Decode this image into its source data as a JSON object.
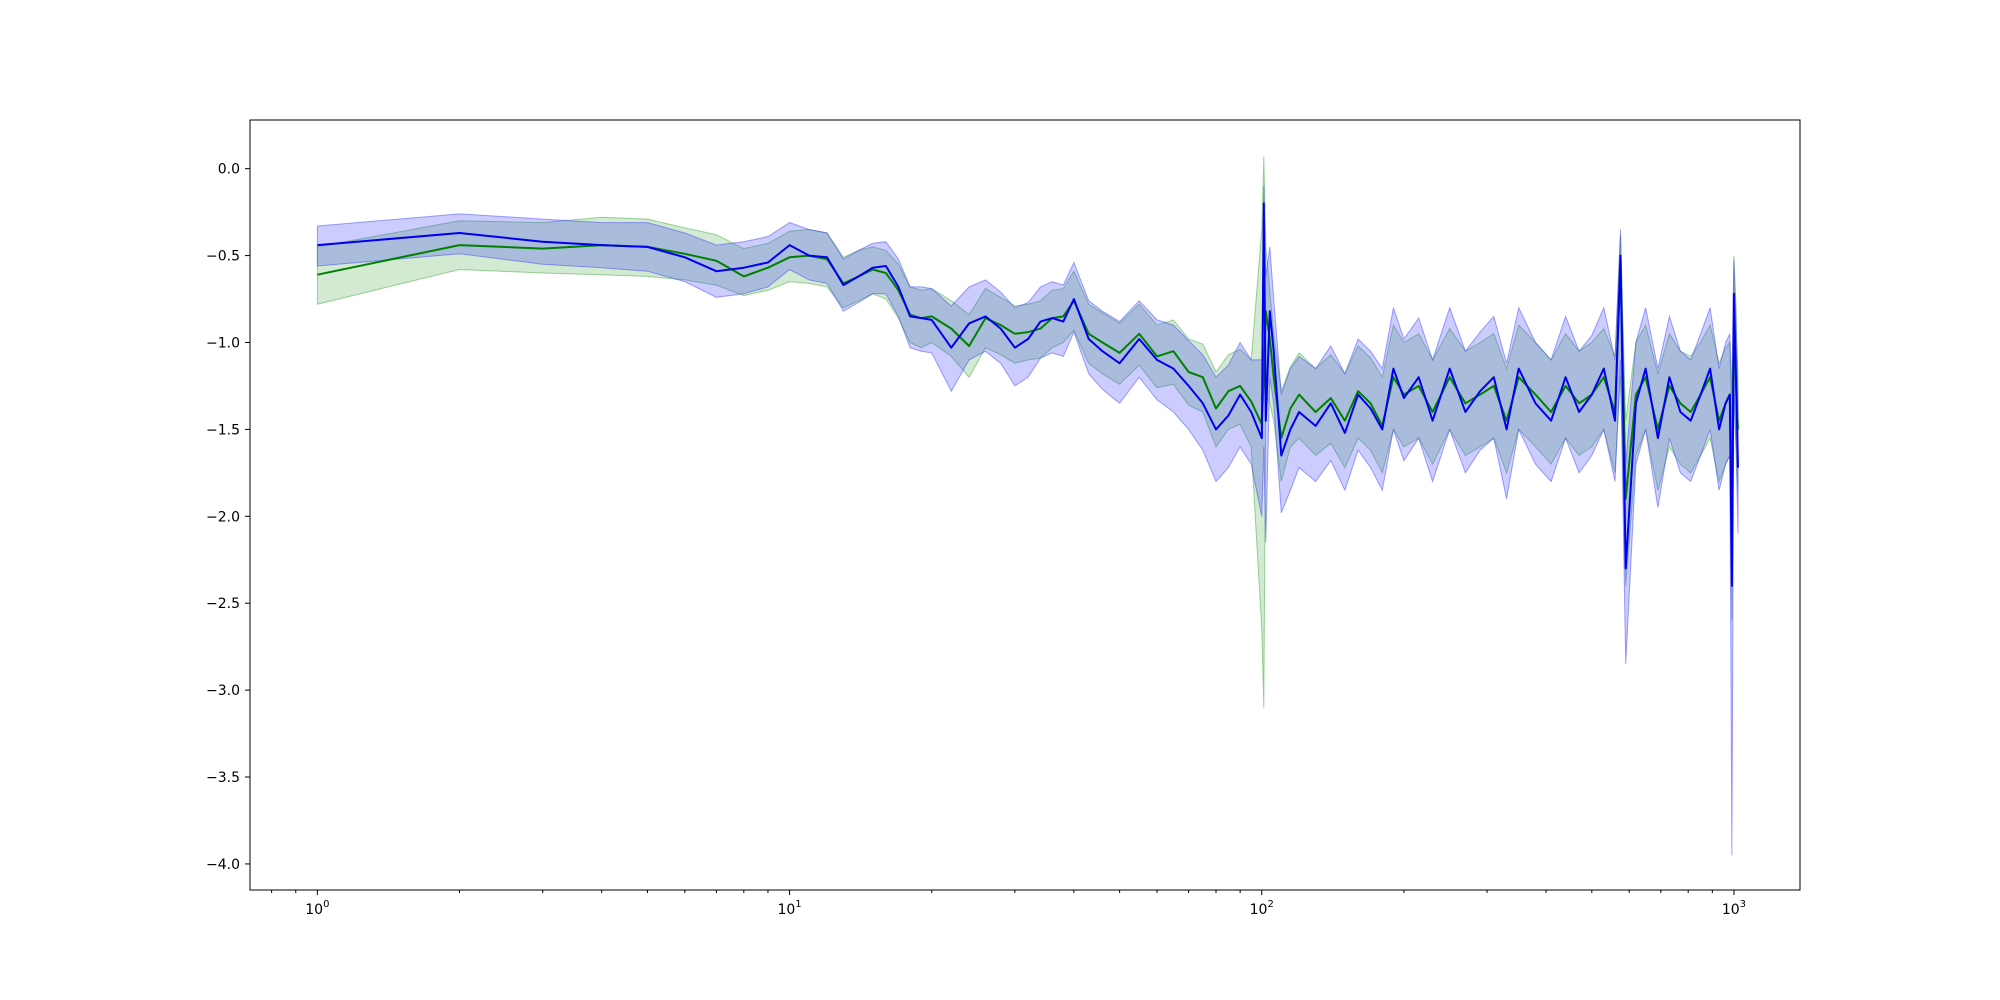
{
  "chart_data": {
    "type": "line",
    "title": "",
    "xlabel": "",
    "ylabel": "",
    "xscale": "log",
    "xlim": [
      0.72,
      1380
    ],
    "ylim": [
      -4.15,
      0.28
    ],
    "grid": false,
    "legend": "none",
    "x_ticks": [
      {
        "base": "10",
        "exp": "0",
        "value": 1
      },
      {
        "base": "10",
        "exp": "1",
        "value": 10
      },
      {
        "base": "10",
        "exp": "2",
        "value": 100
      },
      {
        "base": "10",
        "exp": "3",
        "value": 1000
      }
    ],
    "y_ticks": [
      {
        "label": "0.0",
        "value": 0.0
      },
      {
        "label": "−0.5",
        "value": -0.5
      },
      {
        "label": "−1.0",
        "value": -1.0
      },
      {
        "label": "−1.5",
        "value": -1.5
      },
      {
        "label": "−2.0",
        "value": -2.0
      },
      {
        "label": "−2.5",
        "value": -2.5
      },
      {
        "label": "−3.0",
        "value": -3.0
      },
      {
        "label": "−3.5",
        "value": -3.5
      },
      {
        "label": "−4.0",
        "value": -4.0
      }
    ],
    "series": [
      {
        "color": "#008000",
        "band_color": "#2ca02c",
        "band_opacity": 0.22,
        "x": [
          1,
          2,
          3,
          4,
          5,
          6,
          7,
          8,
          9,
          10,
          11,
          12,
          13,
          14,
          15,
          16,
          17,
          18,
          19,
          20,
          22,
          24,
          26,
          28,
          30,
          32,
          34,
          36,
          38,
          40,
          43,
          46,
          50,
          55,
          60,
          65,
          70,
          75,
          80,
          85,
          90,
          95,
          100,
          101,
          102,
          104,
          106,
          110,
          115,
          120,
          130,
          140,
          150,
          160,
          170,
          180,
          190,
          200,
          215,
          230,
          250,
          270,
          290,
          310,
          330,
          350,
          380,
          410,
          440,
          470,
          500,
          530,
          560,
          575,
          590,
          620,
          650,
          690,
          730,
          770,
          810,
          850,
          890,
          930,
          960,
          980,
          990,
          1000,
          1010,
          1020
        ],
        "y": [
          -0.61,
          -0.44,
          -0.46,
          -0.44,
          -0.45,
          -0.49,
          -0.53,
          -0.62,
          -0.57,
          -0.51,
          -0.5,
          -0.52,
          -0.66,
          -0.62,
          -0.58,
          -0.6,
          -0.7,
          -0.84,
          -0.86,
          -0.85,
          -0.92,
          -1.02,
          -0.86,
          -0.9,
          -0.95,
          -0.94,
          -0.92,
          -0.86,
          -0.85,
          -0.76,
          -0.95,
          -1.0,
          -1.06,
          -0.95,
          -1.08,
          -1.05,
          -1.17,
          -1.2,
          -1.38,
          -1.28,
          -1.25,
          -1.34,
          -1.47,
          -1.2,
          -0.82,
          -0.98,
          -1.2,
          -1.55,
          -1.38,
          -1.3,
          -1.4,
          -1.32,
          -1.45,
          -1.28,
          -1.35,
          -1.48,
          -1.2,
          -1.3,
          -1.25,
          -1.4,
          -1.2,
          -1.35,
          -1.3,
          -1.25,
          -1.45,
          -1.2,
          -1.3,
          -1.4,
          -1.25,
          -1.35,
          -1.3,
          -1.2,
          -1.4,
          -0.55,
          -1.9,
          -1.3,
          -1.2,
          -1.5,
          -1.25,
          -1.35,
          -1.4,
          -1.3,
          -1.2,
          -1.45,
          -1.35,
          -1.3,
          -2.0,
          -0.85,
          -1.25,
          -1.5
        ],
        "lower": [
          -0.78,
          -0.58,
          -0.6,
          -0.61,
          -0.62,
          -0.64,
          -0.67,
          -0.73,
          -0.7,
          -0.65,
          -0.66,
          -0.68,
          -0.8,
          -0.76,
          -0.72,
          -0.75,
          -0.86,
          -1.0,
          -1.03,
          -1.0,
          -1.08,
          -1.2,
          -1.03,
          -1.07,
          -1.12,
          -1.1,
          -1.09,
          -1.03,
          -1.0,
          -0.93,
          -1.12,
          -1.18,
          -1.24,
          -1.13,
          -1.26,
          -1.24,
          -1.36,
          -1.4,
          -1.6,
          -1.5,
          -1.47,
          -1.6,
          -2.65,
          -3.1,
          -1.3,
          -1.35,
          -1.45,
          -1.8,
          -1.6,
          -1.55,
          -1.65,
          -1.58,
          -1.72,
          -1.55,
          -1.62,
          -1.75,
          -1.5,
          -1.6,
          -1.55,
          -1.7,
          -1.5,
          -1.65,
          -1.6,
          -1.55,
          -1.75,
          -1.5,
          -1.6,
          -1.7,
          -1.55,
          -1.65,
          -1.6,
          -1.5,
          -1.75,
          -1.2,
          -2.4,
          -1.65,
          -1.5,
          -1.85,
          -1.6,
          -1.7,
          -1.75,
          -1.65,
          -1.55,
          -1.8,
          -1.7,
          -1.65,
          -2.6,
          -1.3,
          -1.6,
          -1.85
        ],
        "upper": [
          -0.45,
          -0.3,
          -0.31,
          -0.28,
          -0.29,
          -0.34,
          -0.38,
          -0.46,
          -0.43,
          -0.36,
          -0.35,
          -0.37,
          -0.51,
          -0.47,
          -0.45,
          -0.47,
          -0.55,
          -0.68,
          -0.7,
          -0.69,
          -0.76,
          -0.84,
          -0.69,
          -0.74,
          -0.79,
          -0.78,
          -0.76,
          -0.7,
          -0.69,
          -0.59,
          -0.78,
          -0.83,
          -0.89,
          -0.78,
          -0.9,
          -0.87,
          -0.98,
          -1.01,
          -1.17,
          -1.07,
          -1.04,
          -1.1,
          -0.35,
          0.07,
          -0.45,
          -0.7,
          -0.95,
          -1.28,
          -1.14,
          -1.06,
          -1.15,
          -1.07,
          -1.18,
          -1.02,
          -1.09,
          -1.2,
          -0.9,
          -1.0,
          -0.95,
          -1.1,
          -0.92,
          -1.05,
          -1.0,
          -0.95,
          -1.15,
          -0.9,
          -1.0,
          -1.1,
          -0.95,
          -1.05,
          -1.0,
          -0.92,
          -1.08,
          -0.38,
          -1.45,
          -1.0,
          -0.9,
          -1.18,
          -0.95,
          -1.05,
          -1.08,
          -1.0,
          -0.9,
          -1.12,
          -1.03,
          -1.0,
          -1.45,
          -0.5,
          -0.92,
          -1.18
        ]
      },
      {
        "color": "#0000ee",
        "band_color": "#3333ff",
        "band_opacity": 0.25,
        "x": [
          1,
          2,
          3,
          4,
          5,
          6,
          7,
          8,
          9,
          10,
          11,
          12,
          13,
          14,
          15,
          16,
          17,
          18,
          19,
          20,
          22,
          24,
          26,
          28,
          30,
          32,
          34,
          36,
          38,
          40,
          43,
          46,
          50,
          55,
          60,
          65,
          70,
          75,
          80,
          85,
          90,
          95,
          100,
          101,
          102,
          104,
          106,
          110,
          115,
          120,
          130,
          140,
          150,
          160,
          170,
          180,
          190,
          200,
          215,
          230,
          250,
          270,
          290,
          310,
          330,
          350,
          380,
          410,
          440,
          470,
          500,
          530,
          560,
          575,
          590,
          620,
          650,
          690,
          730,
          770,
          810,
          850,
          890,
          930,
          960,
          980,
          990,
          1000,
          1010,
          1020
        ],
        "y": [
          -0.44,
          -0.37,
          -0.42,
          -0.44,
          -0.45,
          -0.51,
          -0.59,
          -0.57,
          -0.54,
          -0.44,
          -0.5,
          -0.51,
          -0.67,
          -0.62,
          -0.57,
          -0.56,
          -0.68,
          -0.85,
          -0.86,
          -0.87,
          -1.03,
          -0.89,
          -0.85,
          -0.92,
          -1.03,
          -0.98,
          -0.88,
          -0.86,
          -0.88,
          -0.75,
          -0.98,
          -1.05,
          -1.12,
          -0.98,
          -1.1,
          -1.15,
          -1.25,
          -1.35,
          -1.5,
          -1.42,
          -1.3,
          -1.4,
          -1.55,
          -0.2,
          -1.45,
          -0.82,
          -1.05,
          -1.65,
          -1.5,
          -1.4,
          -1.48,
          -1.35,
          -1.52,
          -1.3,
          -1.38,
          -1.5,
          -1.15,
          -1.32,
          -1.2,
          -1.45,
          -1.15,
          -1.4,
          -1.28,
          -1.2,
          -1.5,
          -1.15,
          -1.35,
          -1.45,
          -1.2,
          -1.4,
          -1.3,
          -1.15,
          -1.45,
          -0.5,
          -2.3,
          -1.35,
          -1.15,
          -1.55,
          -1.2,
          -1.4,
          -1.45,
          -1.3,
          -1.15,
          -1.5,
          -1.35,
          -1.3,
          -2.4,
          -0.72,
          -1.2,
          -1.72
        ],
        "lower": [
          -0.56,
          -0.49,
          -0.55,
          -0.57,
          -0.59,
          -0.65,
          -0.74,
          -0.72,
          -0.68,
          -0.58,
          -0.64,
          -0.66,
          -0.82,
          -0.77,
          -0.72,
          -0.72,
          -0.85,
          -1.03,
          -1.05,
          -1.06,
          -1.28,
          -1.1,
          -1.05,
          -1.12,
          -1.25,
          -1.2,
          -1.09,
          -1.06,
          -1.08,
          -0.94,
          -1.18,
          -1.27,
          -1.35,
          -1.2,
          -1.33,
          -1.4,
          -1.5,
          -1.62,
          -1.8,
          -1.72,
          -1.6,
          -1.7,
          -2.0,
          -1.6,
          -2.15,
          -1.2,
          -1.35,
          -1.98,
          -1.85,
          -1.72,
          -1.8,
          -1.68,
          -1.85,
          -1.62,
          -1.72,
          -1.85,
          -1.5,
          -1.68,
          -1.55,
          -1.8,
          -1.5,
          -1.75,
          -1.62,
          -1.55,
          -1.9,
          -1.5,
          -1.7,
          -1.8,
          -1.55,
          -1.75,
          -1.65,
          -1.5,
          -1.8,
          -1.1,
          -2.85,
          -1.7,
          -1.5,
          -1.95,
          -1.55,
          -1.75,
          -1.8,
          -1.65,
          -1.5,
          -1.85,
          -1.7,
          -1.65,
          -3.95,
          -1.2,
          -1.6,
          -2.1
        ],
        "upper": [
          -0.33,
          -0.26,
          -0.29,
          -0.31,
          -0.31,
          -0.37,
          -0.44,
          -0.42,
          -0.39,
          -0.31,
          -0.35,
          -0.37,
          -0.52,
          -0.47,
          -0.43,
          -0.42,
          -0.52,
          -0.68,
          -0.68,
          -0.69,
          -0.79,
          -0.68,
          -0.64,
          -0.71,
          -0.8,
          -0.77,
          -0.68,
          -0.65,
          -0.67,
          -0.54,
          -0.76,
          -0.82,
          -0.88,
          -0.76,
          -0.87,
          -0.9,
          -0.99,
          -1.07,
          -1.2,
          -1.13,
          -1.0,
          -1.1,
          -1.1,
          -0.1,
          -0.62,
          -0.45,
          -0.75,
          -1.3,
          -1.15,
          -1.08,
          -1.15,
          -1.02,
          -1.18,
          -0.98,
          -1.05,
          -1.15,
          -0.8,
          -0.98,
          -0.86,
          -1.1,
          -0.8,
          -1.05,
          -0.94,
          -0.85,
          -1.12,
          -0.8,
          -1.0,
          -1.1,
          -0.85,
          -1.05,
          -0.96,
          -0.8,
          -1.1,
          -0.35,
          -1.7,
          -1.0,
          -0.8,
          -1.15,
          -0.85,
          -1.05,
          -1.1,
          -0.95,
          -0.8,
          -1.15,
          -1.0,
          -0.95,
          -1.3,
          -0.52,
          -0.8,
          -1.35
        ]
      }
    ]
  }
}
